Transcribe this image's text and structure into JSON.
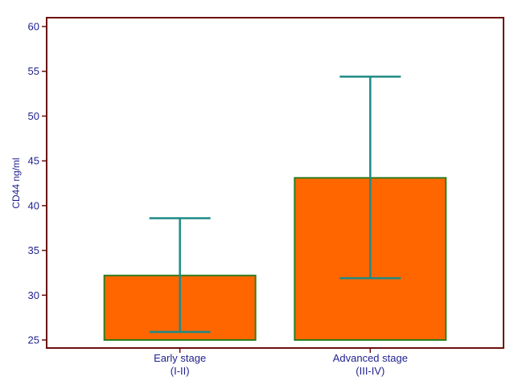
{
  "chart_data": {
    "type": "bar",
    "ylabel": "CD44 ng/ml",
    "ylim": [
      25,
      60
    ],
    "yticks": [
      25,
      30,
      35,
      40,
      45,
      50,
      55,
      60
    ],
    "baseline": 25,
    "categories": [
      {
        "line1": "Early stage",
        "line2": "(I-II)"
      },
      {
        "line1": "Advanced stage",
        "line2": "(III-IV)"
      }
    ],
    "values": [
      32.2,
      43.1
    ],
    "error_bars": [
      {
        "low": 25.9,
        "high": 38.6
      },
      {
        "low": 31.9,
        "high": 54.4
      }
    ],
    "colors": {
      "bar_fill": "#ff6600",
      "bar_stroke": "#2e7d1e",
      "error_bar": "#1f8a86",
      "frame": "#6b0f0f",
      "text": "#1f1f8f"
    }
  }
}
